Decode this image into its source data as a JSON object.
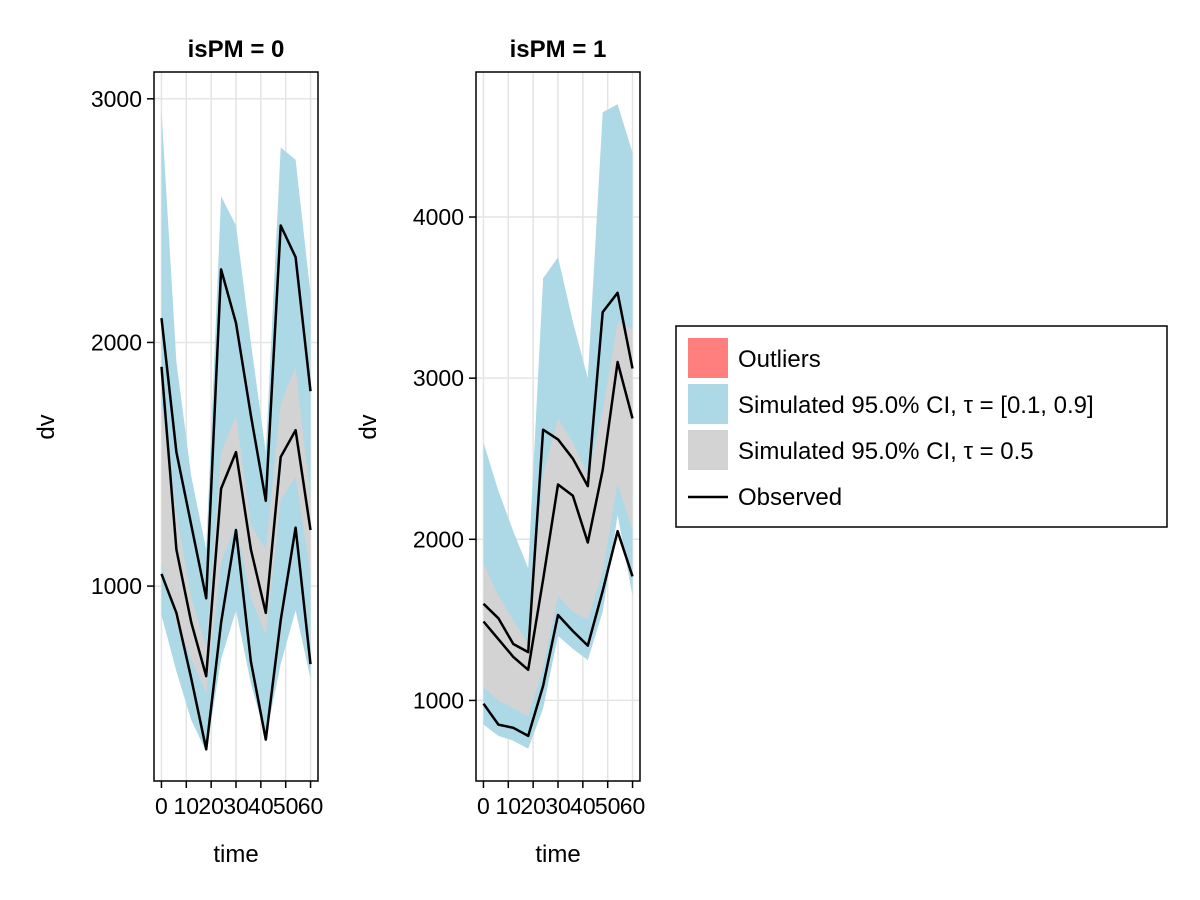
{
  "chart_data": [
    {
      "type": "area",
      "title": "isPM = 0",
      "xlabel": "time",
      "ylabel": "dv",
      "x_ticks": [
        "0",
        "10",
        "20",
        "30",
        "40",
        "50",
        "60"
      ],
      "y_ticks": [
        "1000",
        "2000",
        "3000"
      ],
      "xlim": [
        -3,
        63
      ],
      "ylim": [
        200,
        3110
      ],
      "grid": true,
      "x": [
        0,
        6,
        12,
        18,
        24,
        30,
        36,
        42,
        48,
        54,
        60
      ],
      "bands": [
        {
          "series": "Simulated 95.0% CI, τ = [0.1, 0.9]",
          "color": "#add8e6",
          "upper": [
            2950,
            1920,
            1450,
            1150,
            2600,
            2480,
            2000,
            1550,
            2800,
            2750,
            2200
          ],
          "lower": [
            880,
            650,
            450,
            320,
            700,
            900,
            600,
            380,
            680,
            900,
            620
          ]
        },
        {
          "series": "Simulated 95.0% CI, τ = 0.5",
          "color": "#d3d3d3",
          "upper": [
            1750,
            1300,
            950,
            750,
            1550,
            1700,
            1250,
            1150,
            1750,
            1900,
            1350
          ],
          "lower": [
            1100,
            850,
            700,
            560,
            1100,
            1250,
            950,
            800,
            1350,
            1450,
            1050
          ]
        }
      ],
      "observed": [
        [
          2100,
          1550,
          1250,
          950,
          2300,
          2080,
          1700,
          1350,
          2480,
          2350,
          1800
        ],
        [
          1900,
          1150,
          850,
          630,
          1400,
          1550,
          1150,
          890,
          1530,
          1640,
          1230
        ],
        [
          1050,
          890,
          620,
          330,
          850,
          1230,
          690,
          370,
          860,
          1240,
          680
        ]
      ]
    },
    {
      "type": "area",
      "title": "isPM = 1",
      "xlabel": "time",
      "ylabel": "dv",
      "x_ticks": [
        "0",
        "10",
        "20",
        "30",
        "40",
        "50",
        "60"
      ],
      "y_ticks": [
        "1000",
        "2000",
        "3000",
        "4000"
      ],
      "xlim": [
        -3,
        63
      ],
      "ylim": [
        500,
        4900
      ],
      "grid": true,
      "x": [
        0,
        6,
        12,
        18,
        24,
        30,
        36,
        42,
        48,
        54,
        60
      ],
      "bands": [
        {
          "series": "Simulated 95.0% CI, τ = [0.1, 0.9]",
          "color": "#add8e6",
          "upper": [
            2600,
            2300,
            2050,
            1820,
            3620,
            3750,
            3350,
            3000,
            4650,
            4700,
            4400
          ],
          "lower": [
            850,
            780,
            750,
            700,
            950,
            1400,
            1320,
            1250,
            1550,
            2150,
            1650
          ]
        },
        {
          "series": "Simulated 95.0% CI, τ = 0.5",
          "color": "#d3d3d3",
          "upper": [
            1850,
            1650,
            1500,
            1350,
            2400,
            2750,
            2600,
            2400,
            2800,
            3350,
            3300
          ],
          "lower": [
            1080,
            1000,
            950,
            900,
            1200,
            1650,
            1550,
            1500,
            1800,
            2350,
            2050
          ]
        }
      ],
      "observed": [
        [
          1600,
          1510,
          1350,
          1300,
          2680,
          2620,
          2500,
          2330,
          3410,
          3530,
          3060
        ],
        [
          1490,
          1380,
          1270,
          1190,
          1750,
          2340,
          2270,
          1980,
          2430,
          3100,
          2750
        ],
        [
          980,
          850,
          830,
          780,
          1090,
          1530,
          1430,
          1340,
          1680,
          2050,
          1770
        ]
      ]
    }
  ],
  "legend": {
    "placement": "right",
    "items": [
      {
        "label": "Outliers",
        "color": "#ff7f7f",
        "kind": "patch"
      },
      {
        "label": "Simulated 95.0% CI, τ = [0.1, 0.9]",
        "color": "#add8e6",
        "kind": "patch"
      },
      {
        "label": "Simulated 95.0% CI, τ = 0.5",
        "color": "#d3d3d3",
        "kind": "patch"
      },
      {
        "label": "Observed",
        "color": "#000000",
        "kind": "line"
      }
    ]
  }
}
